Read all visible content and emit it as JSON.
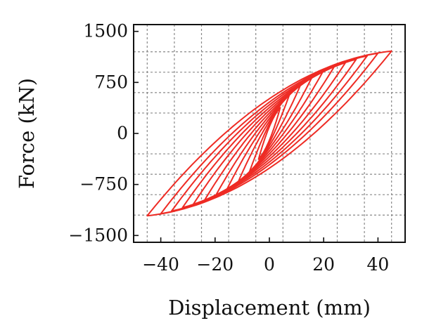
{
  "chart_data": {
    "type": "line",
    "title": "",
    "xlabel": "Displacement (mm)",
    "ylabel": "Force (kN)",
    "xlim": [
      -50,
      50
    ],
    "ylim": [
      -1600,
      1600
    ],
    "x_ticks": [
      -40,
      -20,
      0,
      20,
      40
    ],
    "x_tick_labels": [
      "−40",
      "−20",
      "0",
      "20",
      "40"
    ],
    "y_ticks": [
      -1500,
      -750,
      0,
      750,
      1500
    ],
    "y_tick_labels": [
      "−1500",
      "−750",
      "0",
      "750",
      "1500"
    ],
    "grid": true,
    "line_color": "#ee2b24",
    "series": [
      {
        "amplitude_mm": 4,
        "peak_force_kN": 380
      },
      {
        "amplitude_mm": 8,
        "peak_force_kN": 640
      },
      {
        "amplitude_mm": 12,
        "peak_force_kN": 760
      },
      {
        "amplitude_mm": 16,
        "peak_force_kN": 850
      },
      {
        "amplitude_mm": 20,
        "peak_force_kN": 930
      },
      {
        "amplitude_mm": 24,
        "peak_force_kN": 990
      },
      {
        "amplitude_mm": 28,
        "peak_force_kN": 1040
      },
      {
        "amplitude_mm": 32,
        "peak_force_kN": 1090
      },
      {
        "amplitude_mm": 36,
        "peak_force_kN": 1140
      },
      {
        "amplitude_mm": 40,
        "peak_force_kN": 1180
      },
      {
        "amplitude_mm": 45,
        "peak_force_kN": 1210
      }
    ]
  }
}
